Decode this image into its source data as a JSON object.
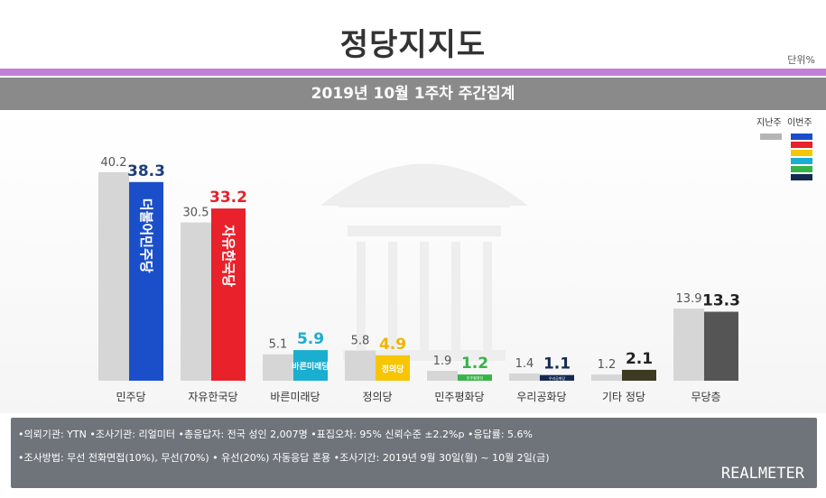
{
  "header": {
    "title": "정당지지도",
    "unit": "단위%",
    "subtitle": "2019년 10월 1주차 주간집계"
  },
  "colors": {
    "purple_line": "#c27fd8",
    "prev_bar": "#d6d6d6",
    "brand_palette": [
      "#1b4fc9",
      "#e8212b",
      "#f7c600",
      "#1aaed0",
      "#37b34a",
      "#152a52"
    ]
  },
  "legend": {
    "prev_label": "지난주",
    "curr_label": "이번주"
  },
  "chart_data": {
    "type": "bar",
    "title": "2019년 10월 1주차 주간집계",
    "xlabel": "",
    "ylabel": "",
    "unit": "%",
    "ylim": [
      0,
      45
    ],
    "grid": false,
    "legend_position": "top-right",
    "categories": [
      "민주당",
      "자유한국당",
      "바른미래당",
      "정의당",
      "민주평화당",
      "우리공화당",
      "기타 정당",
      "무당층"
    ],
    "series": [
      {
        "name": "지난주",
        "values": [
          40.2,
          30.5,
          5.1,
          5.8,
          1.9,
          1.4,
          1.2,
          13.9
        ],
        "labels": [
          "40.2",
          "30.5",
          "5.1",
          "5.8",
          "1.9",
          "1.4",
          "1.2",
          "13.9"
        ]
      },
      {
        "name": "이번주",
        "values": [
          38.3,
          33.2,
          5.9,
          4.9,
          1.2,
          1.1,
          2.1,
          13.3
        ],
        "labels": [
          "38.3",
          "33.2",
          "5.9",
          "4.9",
          "1.2",
          "1.1",
          "2.1",
          "13.3"
        ]
      }
    ],
    "bar_colors": [
      "#1b4fc9",
      "#e8212b",
      "#1aaed0",
      "#f7c600",
      "#37b34a",
      "#152a52",
      "#3c3a22",
      "#555555"
    ],
    "label_colors": [
      "#1f3f7a",
      "#e8212b",
      "#1aaed0",
      "#f0b400",
      "#37b34a",
      "#152a52",
      "#222222",
      "#222222"
    ],
    "bar_logos": [
      "더불어민주당",
      "자유한국당",
      "바른미래당",
      "정의당",
      "민주평화당",
      "우리공화당",
      "",
      ""
    ]
  },
  "footer": {
    "line1": "•의뢰기관: YTN •조사기관: 리얼미터 •총응답자: 전국 성인 2,007명 •표집오차: 95% 신뢰수준 ±2.2%p •응답률: 5.6%",
    "line2": "•조사방법: 무선 전화면접(10%), 무선(70%) • 유선(20%) 자동응답 혼용  •조사기간: 2019년 9월 30일(월) ~ 10월 2일(금)",
    "brand": "REALMETER"
  }
}
